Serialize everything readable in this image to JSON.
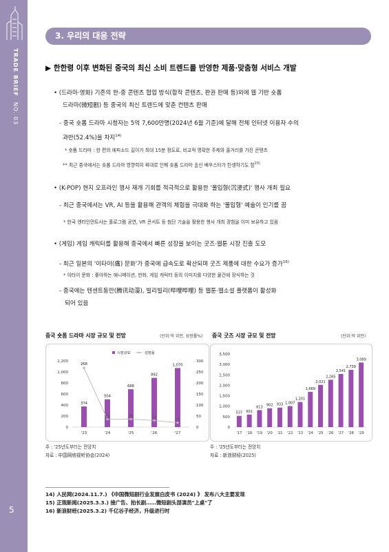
{
  "sidebar": {
    "brand": "TRADE BRIEF",
    "issue": "NO. 03",
    "page_number": "5"
  },
  "section": {
    "title": "3. 우리의 대응 전략"
  },
  "headline": "▶ 한한령 이후 변화된 중국의 최신 소비 트렌드를 반영한 제품·맞춤형 서비스 개발",
  "body": {
    "p1_line1": "• (드라마·영화) 기존의 한-중 콘텐츠 협업 방식(합작 콘텐츠, 판권 판매 등)외에 웹 기반 숏폼",
    "p1_line2": "드라마(微短剧) 등 중국의 최신 트렌드에 맞춘 컨텐츠 판매",
    "p1_sub1": "- 중국 숏폼 드라마 시청자는 5억 7,600만명(2024년 6월 기준)에 달해 전체 인터넷 이용자 수의",
    "p1_sub2": "과반(52.4%)을 차지",
    "p1_sub2_sup": "14)",
    "p1_note1": "* 숏폼 드라마 : 한 편의 에피소드 길이가 최대 15분 정도로, 비교적 명확한 주제와 줄거리를 가진 콘텐츠",
    "p1_note2": "** 최근 중국에서는 숏폼 드라마 영향력의 확대로 인해 숏폼 드라마 출신 배우스타가 탄생하기도 함",
    "p1_note2_sup": "15)",
    "p2_line1": "• (K-POP) 현지 오프라인 행사 재개 기회를 적극적으로 활용한 '몰입형(沉浸式)' 행사 개최 필요",
    "p2_sub1": "- 최근 중국에서는 VR, AI 등을 활용해 관객의 체험을 극대화 하는 '몰입형' 예술이 인기를 끔",
    "p2_note1": "* 한국 엔터인먼트사는 홀로그램 공연, VR 콘서트 등 첨단 기술을 활용한 행사 개최 경험을 이미 보유하고 있음",
    "p3_line1": "• (게임)  게임 캐릭터를 활용해 중국에서 빠른 성장을 보이는 굿즈·웹툰 시장 진출 도모",
    "p3_sub1": "- 최근 일본의 '이타이(痛) 문화'가 중국에 급속도로 확산되며 굿즈 제품에 대한 수요가 증가",
    "p3_sub1_sup": "16)",
    "p3_note1": "* 이타이 문화 : 좋아하는 애니메이션, 만화, 게임 캐릭터 등의 이미지를 다양한 물건에 장식하는 것",
    "p3_sub2": "- 중국에는  텐센트동만(腾讯动漫),  빌리빌리(哔哩哔哩)  등  웹툰·웹소설  플랫폼이  활성화",
    "p3_sub3": "되어 있음"
  },
  "charts_text": {
    "left_title": "중국 숏폼 드라마 시장 규모 및 전망",
    "left_unit": "(단위:억 위안, 성장률%)",
    "right_title": "중국 굿즈 시장 규모 및 전망",
    "right_unit": "(단위:억 위안)",
    "left_note": "주 : '25년도부터는 전망치",
    "left_source": "자료 : 中国网络视听协会(2024)",
    "right_note": "주 : '25년도부터는 전망치",
    "right_source": "자료 : 新浪财经(2025)"
  },
  "chart_data": [
    {
      "type": "bar",
      "title": "중국 숏폼 드라마 시장 규모 및 전망",
      "unit": "(단위:억 위안, 성장률%)",
      "categories": [
        "'23",
        "'24",
        "'25",
        "'26",
        "'27"
      ],
      "series": [
        {
          "name": "시장규모",
          "type": "bar",
          "axis": "left",
          "values": [
            374,
            504,
            686,
            892,
            1070
          ]
        },
        {
          "name": "성장률",
          "type": "line",
          "axis": "right",
          "values": [
            268,
            35,
            36,
            30,
            20
          ]
        }
      ],
      "ylim_left": [
        0,
        1200
      ],
      "yticks_left": [
        0,
        200,
        400,
        600,
        800,
        1000,
        1200
      ],
      "ylim_right": [
        0,
        300
      ],
      "yticks_right": [
        0,
        50,
        100,
        150,
        200,
        250,
        300
      ],
      "legend": "top",
      "colors": {
        "bar": "#9a4fb0",
        "line": "#b5b5b5"
      }
    },
    {
      "type": "bar",
      "title": "중국 굿즈 시장 규모 및 전망",
      "unit": "(단위:억 위안)",
      "categories": [
        "'17",
        "'18",
        "'19",
        "'20",
        "'21",
        "'22",
        "'23",
        "'24",
        "'25",
        "'26",
        "'27",
        "'28",
        "'29"
      ],
      "values": [
        537,
        601,
        813,
        902,
        933,
        1007,
        1201,
        1689,
        2021,
        2265,
        2541,
        2739,
        3089
      ],
      "ylim": [
        0,
        3500
      ],
      "yticks": [
        0,
        500,
        1000,
        1500,
        2000,
        2500,
        3000,
        3500
      ],
      "colors": {
        "bar": "#9a4fb0"
      }
    }
  ],
  "footnotes": [
    "14) 人民网(2024.11.7.) 《中国微短剧行业发展白皮书 (2024) 》 发布八大主要发现",
    "15) 正观新闻(2025.3.3.) 接广告、拍长剧……微短剧头部演员\"上桌\"了",
    "16) 新浪财经(2025.3.2) 千亿谷子经济，升级进行时"
  ]
}
